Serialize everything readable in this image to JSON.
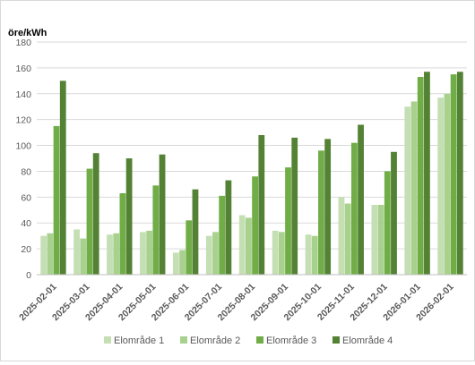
{
  "chart_data": {
    "type": "bar",
    "title": "",
    "xlabel": "",
    "ylabel": "öre/kWh",
    "ylim": [
      0,
      180
    ],
    "yticks": [
      0,
      20,
      40,
      60,
      80,
      100,
      120,
      140,
      160,
      180
    ],
    "grid": true,
    "legend_position": "bottom",
    "categories": [
      "2025-02-01",
      "2025-03-01",
      "2025-04-01",
      "2025-05-01",
      "2025-06-01",
      "2025-07-01",
      "2025-08-01",
      "2025-09-01",
      "2025-10-01",
      "2025-11-01",
      "2025-12-01",
      "2026-01-01",
      "2026-02-01"
    ],
    "series": [
      {
        "name": "Elområde 1",
        "color": "#c5dfb4",
        "values": [
          30,
          35,
          31,
          33,
          17,
          30,
          46,
          34,
          31,
          60,
          54,
          130,
          137
        ]
      },
      {
        "name": "Elområde 2",
        "color": "#a9d18e",
        "values": [
          32,
          28,
          32,
          34,
          19,
          33,
          44,
          33,
          30,
          55,
          54,
          134,
          140
        ]
      },
      {
        "name": "Elområde 3",
        "color": "#70ad47",
        "values": [
          115,
          82,
          63,
          69,
          42,
          61,
          76,
          83,
          96,
          102,
          80,
          153,
          155
        ]
      },
      {
        "name": "Elområde 4",
        "color": "#548235",
        "values": [
          150,
          94,
          90,
          93,
          66,
          73,
          108,
          106,
          105,
          116,
          95,
          157,
          157
        ]
      }
    ]
  }
}
